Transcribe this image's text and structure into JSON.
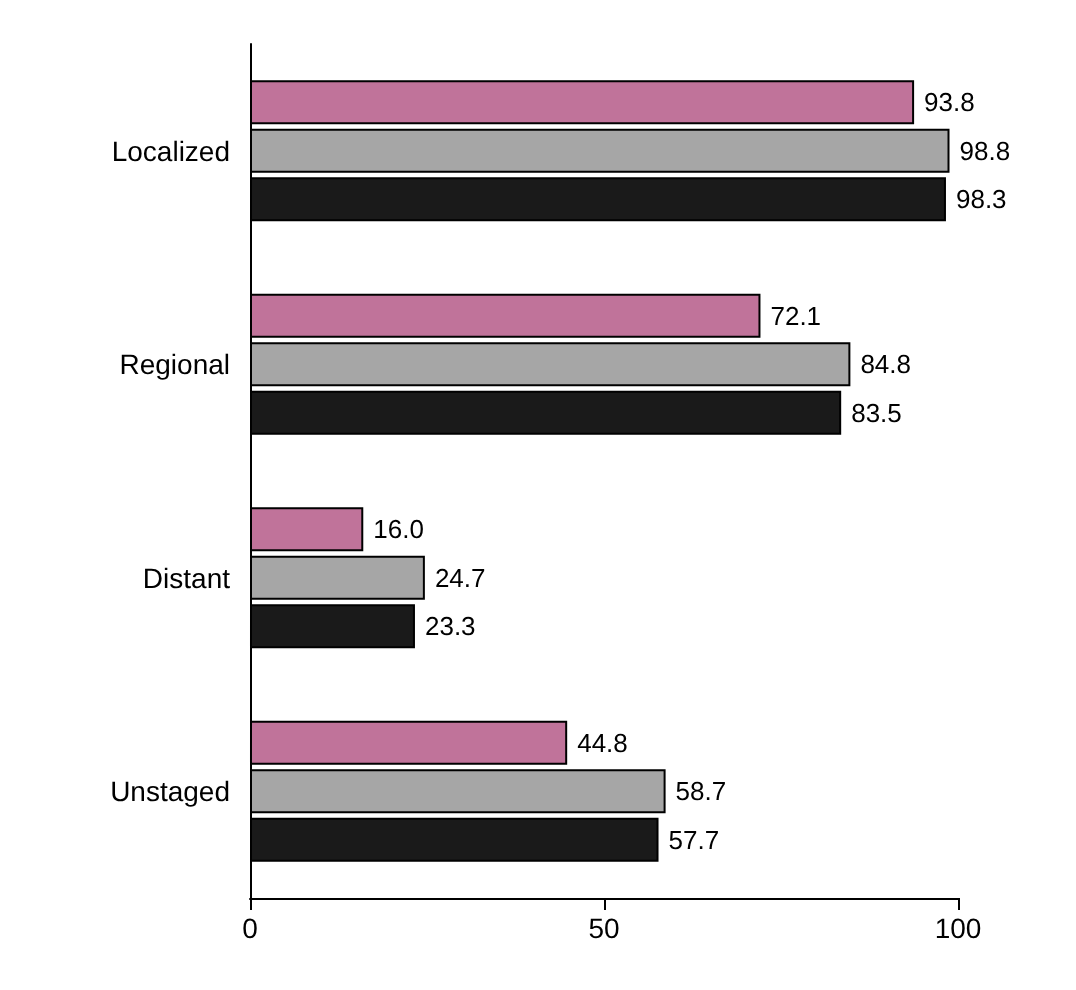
{
  "chart_data": {
    "type": "bar",
    "orientation": "horizontal",
    "categories": [
      "Localized",
      "Regional",
      "Distant",
      "Unstaged"
    ],
    "series": [
      {
        "color": "#c0739a",
        "values": [
          93.8,
          72.1,
          16.0,
          44.8
        ],
        "value_labels": [
          "93.8",
          "72.1",
          "16.0",
          "44.8"
        ]
      },
      {
        "color": "#a6a6a6",
        "values": [
          98.8,
          84.8,
          24.7,
          58.7
        ],
        "value_labels": [
          "98.8",
          "84.8",
          "24.7",
          "58.7"
        ]
      },
      {
        "color": "#1a1a1a",
        "values": [
          98.3,
          83.5,
          23.3,
          57.7
        ],
        "value_labels": [
          "98.3",
          "83.5",
          "23.3",
          "57.7"
        ]
      }
    ],
    "xlim": [
      0,
      100
    ],
    "xticks": [
      0,
      50,
      100
    ],
    "grid": false
  }
}
